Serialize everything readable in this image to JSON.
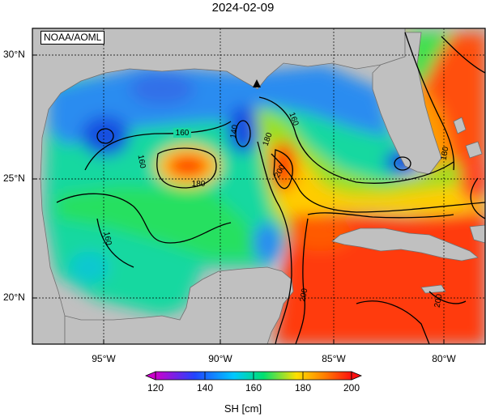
{
  "title": "2024-02-09",
  "credit": "NOAA/AOML",
  "map": {
    "region": "Gulf of Mexico",
    "lat_labels": [
      "30°N",
      "25°N",
      "20°N"
    ],
    "lon_labels": [
      "95°W",
      "90°W",
      "85°W",
      "80°W"
    ],
    "colors": {
      "land": "#c0c0c0",
      "grid": "#000000"
    }
  },
  "contours": {
    "labels": [
      "160",
      "140",
      "160",
      "180",
      "140",
      "200",
      "160",
      "180",
      "180",
      "160",
      "200",
      "200"
    ]
  },
  "marker": {
    "symbol": "triangle"
  },
  "colorbar": {
    "ticks": [
      "120",
      "140",
      "160",
      "180",
      "200"
    ],
    "label": "SH [cm]",
    "stops": [
      "#cc00cc",
      "#2244ff",
      "#00c8ff",
      "#00e070",
      "#ffe000",
      "#ff8000",
      "#ff1010"
    ]
  }
}
